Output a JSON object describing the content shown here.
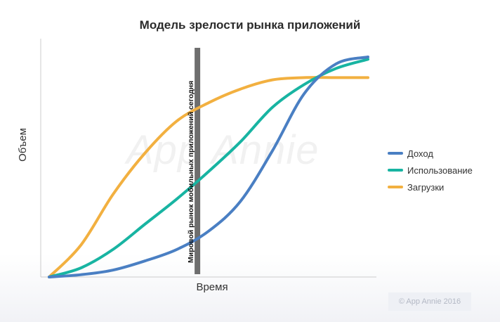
{
  "chart_data": {
    "type": "line",
    "title": "Модель зрелости рынка приложений",
    "xlabel": "Время",
    "ylabel": "Объем",
    "xlim": [
      0,
      10
    ],
    "ylim": [
      0,
      10
    ],
    "grid": false,
    "legend_position": "right",
    "x": [
      0,
      1,
      2,
      3,
      4,
      5,
      6,
      7,
      8,
      9,
      10
    ],
    "series": [
      {
        "name": "Доход",
        "color": "#4a7fc3",
        "values": [
          0.0,
          0.1,
          0.3,
          0.7,
          1.2,
          2.0,
          3.3,
          5.5,
          8.0,
          9.3,
          9.6
        ]
      },
      {
        "name": "Использование",
        "color": "#18b4a2",
        "values": [
          0.0,
          0.4,
          1.2,
          2.3,
          3.4,
          4.6,
          5.9,
          7.4,
          8.4,
          9.1,
          9.5
        ]
      },
      {
        "name": "Загрузки",
        "color": "#f2b040",
        "values": [
          0.0,
          1.4,
          3.6,
          5.4,
          6.8,
          7.6,
          8.2,
          8.6,
          8.7,
          8.7,
          8.7
        ]
      }
    ],
    "marker": {
      "x": 4.65,
      "label": "Мировой рынок мобильных приложений сегодня",
      "color": "#6e6e6e"
    },
    "axis_color": "#cccccc"
  },
  "watermark": "App Annie",
  "copyright": "© App Annie 2016"
}
